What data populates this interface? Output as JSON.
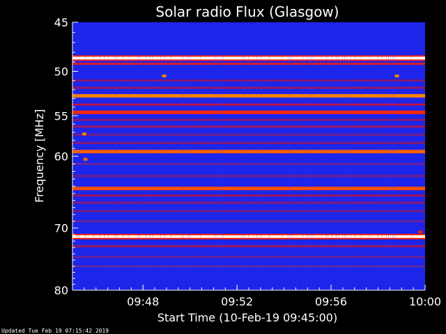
{
  "chart_data": {
    "type": "heatmap",
    "title": "Solar radio Flux (Glasgow)",
    "xlabel": "Start Time (10-Feb-19 09:45:00)",
    "ylabel": "Frequency [MHz]",
    "x_range_minutes": [
      0,
      15
    ],
    "x_ticks": [
      {
        "minute": 3,
        "label": "09:48"
      },
      {
        "minute": 7,
        "label": "09:52"
      },
      {
        "minute": 11,
        "label": "09:56"
      },
      {
        "minute": 15,
        "label": "10:00"
      }
    ],
    "y_range_mhz": [
      45,
      80
    ],
    "y_scale": "log",
    "y_inverted": true,
    "y_ticks": [
      45,
      50,
      55,
      60,
      70,
      80
    ],
    "colormap": [
      "#000033",
      "#0000d0",
      "#3344ff",
      "#7a1a7a",
      "#cc1133",
      "#ff2200",
      "#ff8800",
      "#ffffff"
    ],
    "background_intensity": 0.22,
    "bands": [
      {
        "mhz": 48.6,
        "intensity": 1.0
      },
      {
        "mhz": 49.2,
        "intensity": 0.65
      },
      {
        "mhz": 51.0,
        "intensity": 0.45
      },
      {
        "mhz": 51.8,
        "intensity": 0.48
      },
      {
        "mhz": 52.7,
        "intensity": 0.85
      },
      {
        "mhz": 53.7,
        "intensity": 0.55
      },
      {
        "mhz": 54.6,
        "intensity": 0.72
      },
      {
        "mhz": 55.5,
        "intensity": 0.45
      },
      {
        "mhz": 56.3,
        "intensity": 0.5
      },
      {
        "mhz": 57.3,
        "intensity": 0.42
      },
      {
        "mhz": 58.3,
        "intensity": 0.45
      },
      {
        "mhz": 59.4,
        "intensity": 0.8
      },
      {
        "mhz": 61.0,
        "intensity": 0.4
      },
      {
        "mhz": 62.6,
        "intensity": 0.42
      },
      {
        "mhz": 64.3,
        "intensity": 0.78
      },
      {
        "mhz": 65.3,
        "intensity": 0.5
      },
      {
        "mhz": 66.3,
        "intensity": 0.45
      },
      {
        "mhz": 67.5,
        "intensity": 0.42
      },
      {
        "mhz": 69.0,
        "intensity": 0.4
      },
      {
        "mhz": 71.3,
        "intensity": 0.98
      },
      {
        "mhz": 72.8,
        "intensity": 0.5
      },
      {
        "mhz": 74.5,
        "intensity": 0.4
      },
      {
        "mhz": 76.0,
        "intensity": 0.38
      }
    ],
    "spots": [
      {
        "minute": 3.9,
        "mhz": 50.5,
        "intensity": 0.85
      },
      {
        "minute": 13.8,
        "mhz": 50.5,
        "intensity": 0.85
      },
      {
        "minute": 0.5,
        "mhz": 57.2,
        "intensity": 0.85
      },
      {
        "minute": 0.55,
        "mhz": 60.4,
        "intensity": 0.8
      },
      {
        "minute": 14.8,
        "mhz": 70.6,
        "intensity": 0.7
      }
    ]
  },
  "footer": {
    "updated": "Updated Tue Feb 19 07:15:42 2019"
  }
}
